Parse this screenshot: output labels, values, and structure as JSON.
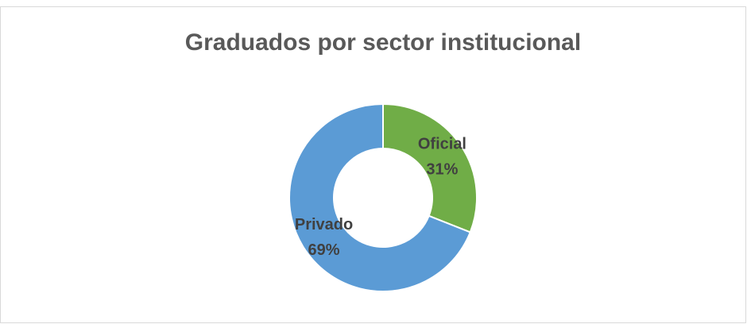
{
  "chart_data": {
    "type": "donut",
    "title": "Graduados por sector institucional",
    "categories": [
      "Oficial",
      "Privado"
    ],
    "values": [
      31,
      69
    ],
    "value_labels": [
      "31%",
      "69%"
    ],
    "colors": [
      "#70ad47",
      "#5b9bd5"
    ]
  }
}
